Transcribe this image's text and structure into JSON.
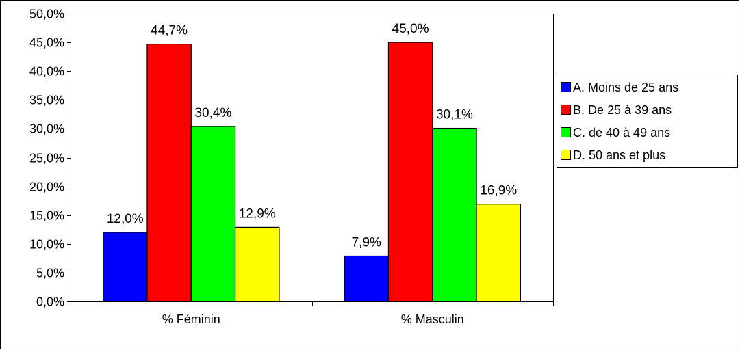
{
  "chart_data": {
    "type": "bar",
    "title": "",
    "xlabel": "",
    "ylabel": "",
    "ylim": [
      0,
      50
    ],
    "y_ticks": [
      "0,0%",
      "5,0%",
      "10,0%",
      "15,0%",
      "20,0%",
      "25,0%",
      "30,0%",
      "35,0%",
      "40,0%",
      "45,0%",
      "50,0%"
    ],
    "categories": [
      "% Féminin",
      "% Masculin"
    ],
    "grid": false,
    "legend_position": "right",
    "series": [
      {
        "name": "A. Moins de 25 ans",
        "color": "#0000ff",
        "values": [
          12.0,
          7.9
        ],
        "labels": [
          "12,0%",
          "7,9%"
        ]
      },
      {
        "name": "B. De 25 à 39 ans",
        "color": "#ff0000",
        "values": [
          44.7,
          45.0
        ],
        "labels": [
          "44,7%",
          "45,0%"
        ]
      },
      {
        "name": "C. de 40 à 49 ans",
        "color": "#00ff00",
        "values": [
          30.4,
          30.1
        ],
        "labels": [
          "30,4%",
          "30,1%"
        ]
      },
      {
        "name": "D. 50 ans et plus",
        "color": "#ffff00",
        "values": [
          12.9,
          16.9
        ],
        "labels": [
          "12,9%",
          "16,9%"
        ]
      }
    ]
  }
}
